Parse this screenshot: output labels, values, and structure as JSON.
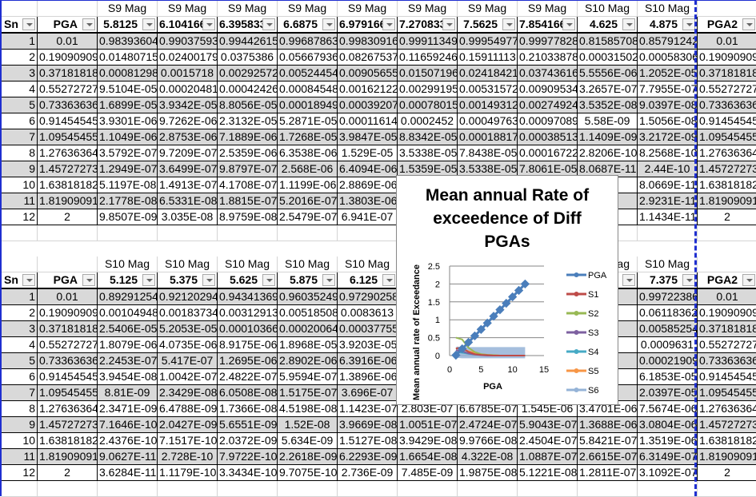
{
  "block1": {
    "super": [
      "",
      "",
      "S9 Mag",
      "S9 Mag",
      "S9 Mag",
      "S9 Mag",
      "S9 Mag",
      "S9 Mag",
      "S9 Mag",
      "S9 Mag",
      "S10 Mag",
      "S10 Mag",
      ""
    ],
    "headers": [
      "Sn",
      "PGA",
      "5.8125",
      "6.1041666",
      "6.3958333",
      "6.6875",
      "6.9791666",
      "7.2708333",
      "7.5625",
      "7.8541666",
      "4.625",
      "4.875",
      "PGA2"
    ],
    "rows": [
      [
        "1",
        "0.01",
        "0.98393604",
        "0.99037593",
        "0.99442615",
        "0.99687863",
        "0.99830916",
        "0.99911349",
        "0.99954977",
        "0.99977828",
        "0.81585708",
        "0.85791242",
        "0.01"
      ],
      [
        "2",
        "0.19090909",
        "0.01480715",
        "0.02400179",
        "0.0375386",
        "0.05667936",
        "0.08267537",
        "0.11659246",
        "0.15911113",
        "0.21033878",
        "0.00031502",
        "0.00058306",
        "0.19090909"
      ],
      [
        "3",
        "0.37181818",
        "0.00081298",
        "0.0015718",
        "0.00292572",
        "0.00524454",
        "0.00905655",
        "0.01507196",
        "0.02418421",
        "0.03743616",
        "5.5556E-06",
        "1.2052E-05",
        "0.37181818"
      ],
      [
        "4",
        "0.55272727",
        "9.5104E-05",
        "0.00020481",
        "0.00042426",
        "0.00084548",
        "0.00162122",
        "0.00299195",
        "0.00531572",
        "0.00909534",
        "3.2657E-07",
        "7.7955E-07",
        "0.55272727"
      ],
      [
        "5",
        "0.73363636",
        "1.6899E-05",
        "3.9342E-05",
        "8.8056E-05",
        "0.00018949",
        "0.00039207",
        "0.00078015",
        "0.00149312",
        "0.00274924",
        "3.5352E-08",
        "9.0397E-08",
        "0.73363636"
      ],
      [
        "6",
        "0.91454545",
        "3.9301E-06",
        "9.7262E-06",
        "2.3132E-05",
        "5.2871E-05",
        "0.00011614",
        "0.0002452",
        "0.00049763",
        "0.00097089",
        "5.58E-09",
        "1.5056E-08",
        "0.91454545"
      ],
      [
        "7",
        "1.09545455",
        "1.1049E-06",
        "2.8753E-06",
        "7.1889E-06",
        "1.7268E-05",
        "3.9847E-05",
        "8.8342E-05",
        "0.00018817",
        "0.00038513",
        "1.1409E-09",
        "3.2172E-09",
        "1.09545455"
      ],
      [
        "8",
        "1.27636364",
        "3.5792E-07",
        "9.7209E-07",
        "2.5359E-06",
        "6.3538E-06",
        "1.529E-05",
        "3.5338E-05",
        "7.8438E-05",
        "0.00016722",
        "2.8206E-10",
        "8.2568E-10",
        "1.27636364"
      ],
      [
        "9",
        "1.45727273",
        "1.2949E-07",
        "3.6499E-07",
        "9.8797E-07",
        "2.568E-06",
        "6.4094E-06",
        "1.5359E-05",
        "3.5338E-05",
        "7.8061E-05",
        "8.0687E-11",
        "2.44E-10",
        "1.45727273"
      ],
      [
        "10",
        "1.63818182",
        "5.1197E-08",
        "1.4913E-07",
        "4.1708E-07",
        "1.1199E-06",
        "2.8869E-06",
        null,
        null,
        null,
        null,
        "8.0669E-11",
        "1.63818182"
      ],
      [
        "11",
        "1.81909091",
        "2.1778E-08",
        "6.5331E-08",
        "1.8815E-07",
        "5.2016E-07",
        "1.3803E-06",
        null,
        null,
        null,
        null,
        "2.9231E-11",
        "1.81909091"
      ],
      [
        "12",
        "2",
        "9.8507E-09",
        "3.035E-08",
        "8.9759E-08",
        "2.5479E-07",
        "6.941E-07",
        null,
        null,
        null,
        null,
        "1.1434E-11",
        "2"
      ]
    ]
  },
  "block2": {
    "super": [
      "",
      "",
      "S10 Mag",
      "S10 Mag",
      "S10 Mag",
      "S10 Mag",
      "S10 Mag",
      null,
      null,
      null,
      "S10 Mag",
      "S10 Mag",
      ""
    ],
    "headers": [
      "Sn",
      "PGA",
      "5.125",
      "5.375",
      "5.625",
      "5.875",
      "6.125",
      null,
      null,
      null,
      null,
      "7.375",
      "PGA2"
    ],
    "rows": [
      [
        "1",
        "0.01",
        "0.89291254",
        "0.92120294",
        "0.94341369",
        "0.96035249",
        "0.97290258",
        null,
        null,
        null,
        null,
        "0.99722386",
        "0.01"
      ],
      [
        "2",
        "0.19090909",
        "0.00104948",
        "0.00183734",
        "0.00312913",
        "0.00518508",
        "0.0083613",
        null,
        null,
        null,
        null,
        "0.06118362",
        "0.19090909"
      ],
      [
        "3",
        "0.37181818",
        "2.5406E-05",
        "5.2053E-05",
        "0.00010366",
        "0.00020064",
        "0.00037755",
        null,
        null,
        null,
        null,
        "0.00585254",
        "0.37181818"
      ],
      [
        "4",
        "0.55272727",
        "1.8079E-06",
        "4.0735E-06",
        "8.9175E-06",
        "1.8968E-05",
        "3.9203E-05",
        null,
        null,
        null,
        null,
        "0.0009631",
        "0.55272727"
      ],
      [
        "5",
        "0.73363636",
        "2.2453E-07",
        "5.417E-07",
        "1.2695E-06",
        "2.8902E-06",
        "6.3916E-06",
        null,
        null,
        null,
        null,
        "0.00021909",
        "0.73363636"
      ],
      [
        "6",
        "0.91454545",
        "3.9454E-08",
        "1.0042E-07",
        "2.4822E-07",
        "5.9594E-07",
        "1.3896E-06",
        null,
        null,
        null,
        null,
        "6.1853E-05",
        "0.91454545"
      ],
      [
        "7",
        "1.09545455",
        "8.81E-09",
        "2.3429E-08",
        "6.0508E-08",
        "1.5175E-07",
        "3.696E-07",
        null,
        null,
        null,
        null,
        "2.0397E-05",
        "1.09545455"
      ],
      [
        "8",
        "1.27636364",
        "2.3471E-09",
        "6.4788E-09",
        "1.7366E-08",
        "4.5198E-08",
        "1.1423E-07",
        "2.803E-07",
        "6.6785E-07",
        "1.545E-06",
        "3.4701E-06",
        "7.5674E-06",
        "1.27636364"
      ],
      [
        "9",
        "1.45727273",
        "7.1646E-10",
        "2.0427E-09",
        "5.6551E-09",
        "1.52E-08",
        "3.9669E-08",
        "1.0051E-07",
        "2.4724E-07",
        "5.9043E-07",
        "1.3688E-06",
        "3.0804E-06",
        "1.45727273"
      ],
      [
        "10",
        "1.63818182",
        "2.4376E-10",
        "7.1517E-10",
        "2.0372E-09",
        "5.634E-09",
        "1.5127E-08",
        "3.9429E-08",
        "9.9766E-08",
        "2.4504E-07",
        "5.8421E-07",
        "1.3519E-06",
        "1.63818182"
      ],
      [
        "11",
        "1.81909091",
        "9.0627E-11",
        "2.728E-10",
        "7.9722E-10",
        "2.2618E-09",
        "6.2293E-09",
        "1.6654E-08",
        "4.322E-08",
        "1.0887E-07",
        "2.6615E-07",
        "6.3149E-07",
        "1.81909091"
      ],
      [
        "12",
        "2",
        "3.6284E-11",
        "1.1179E-10",
        "3.3434E-10",
        "9.7075E-10",
        "2.736E-09",
        "7.485E-09",
        "1.9875E-08",
        "5.1221E-08",
        "1.2811E-07",
        "3.1092E-07",
        "2"
      ]
    ]
  },
  "chart_data": {
    "type": "line",
    "title": "Mean annual Rate of exceedence of Diff PGAs",
    "title_lines": [
      "Mean annual Rate of",
      "exceedence of Diff",
      "PGAs"
    ],
    "xlabel": "PGA",
    "ylabel": "Mean annual rate of Exceedance",
    "xlim": [
      0,
      15
    ],
    "ylim": [
      0,
      2.5
    ],
    "xticks": [
      "0",
      "5",
      "10",
      "15"
    ],
    "yticks": [
      "0",
      "0.5",
      "1",
      "1.5",
      "2",
      "2.5"
    ],
    "grid": true,
    "legend_position": "right",
    "x": [
      1,
      2,
      3,
      4,
      5,
      6,
      7,
      8,
      9,
      10,
      11,
      12
    ],
    "series": [
      {
        "name": "PGA",
        "color": "#4a7ebb",
        "values": [
          0.01,
          0.19,
          0.37,
          0.55,
          0.73,
          0.91,
          1.1,
          1.28,
          1.46,
          1.64,
          1.82,
          2
        ]
      },
      {
        "name": "S1",
        "color": "#be4b48",
        "values": [
          0.2,
          0.22,
          0.1,
          0.04,
          0.02,
          0.01,
          0,
          0,
          0,
          0,
          0,
          0
        ]
      },
      {
        "name": "S2",
        "color": "#98b954",
        "values": [
          0.5,
          0.45,
          0.22,
          0.1,
          0.04,
          0.02,
          0.01,
          0,
          0,
          0,
          0,
          0
        ]
      },
      {
        "name": "S3",
        "color": "#7d60a0",
        "values": [
          0.15,
          0.12,
          0.06,
          0.03,
          0.01,
          0,
          0,
          0,
          0,
          0,
          0,
          0
        ]
      },
      {
        "name": "S4",
        "color": "#46aac5",
        "values": [
          0.1,
          0.08,
          0.05,
          0.03,
          0.02,
          0.01,
          0,
          0,
          0,
          0,
          0,
          0
        ]
      },
      {
        "name": "S5",
        "color": "#f79646",
        "values": [
          0.2,
          0.18,
          0.12,
          0.08,
          0.04,
          0.02,
          0.01,
          0,
          0,
          0,
          0,
          0
        ]
      },
      {
        "name": "S6",
        "color": "#95b3d7",
        "values": [
          0.1,
          0.08,
          0.08,
          0.08,
          0.08,
          0.08,
          0.08,
          0.08,
          0.08,
          0.08,
          0.08,
          0.08
        ]
      }
    ]
  }
}
